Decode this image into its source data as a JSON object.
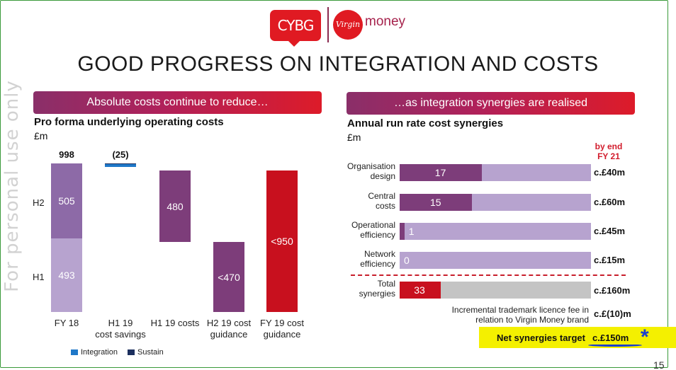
{
  "watermark": "For personal use only",
  "logos": {
    "cybg": "CYBG",
    "virgin": "Virgin",
    "money": "money"
  },
  "title": "GOOD PROGRESS ON INTEGRATION AND COSTS",
  "left_banner": "Absolute costs continue to reduce…",
  "right_banner": "…as integration synergies are realised",
  "page_number": "15",
  "colors": {
    "purple": "#7d3d7a",
    "purple_light": "#b7a3cf",
    "red": "#c8101e",
    "integration": "#1f78c8",
    "sustain": "#1c2f5e",
    "grey": "#c4c4c4"
  },
  "chart_data": [
    {
      "type": "bar",
      "subtype": "waterfall",
      "title": "Pro forma underlying operating costs",
      "unit": "£m",
      "ylabel": "",
      "categories": [
        {
          "label": "FY 18",
          "line1": "FY 18",
          "line2": ""
        },
        {
          "label": "H1 19 cost savings",
          "line1": "H1 19",
          "line2": "cost savings"
        },
        {
          "label": "H1 19 costs",
          "line1": "H1 19 costs",
          "line2": ""
        },
        {
          "label": "H2 19 cost guidance",
          "line1": "H2 19 cost",
          "line2": "guidance"
        },
        {
          "label": "FY 19 cost guidance",
          "line1": "FY 19 cost",
          "line2": "guidance"
        }
      ],
      "row_labels": {
        "h1": "H1",
        "h2": "H2"
      },
      "fy18": {
        "total": 998,
        "total_label": "998",
        "h1": 493,
        "h1_label": "493",
        "h2": 505,
        "h2_label": "505"
      },
      "cost_savings": {
        "total": -25,
        "total_label": "(25)",
        "integration": -22,
        "sustain": -3
      },
      "h1_19_costs": {
        "value": 480,
        "label": "480"
      },
      "h2_19_guidance": {
        "value": 470,
        "label": "<470"
      },
      "fy19_guidance": {
        "value": 950,
        "label": "<950"
      },
      "legend": [
        "Integration",
        "Sustain"
      ]
    },
    {
      "type": "bar",
      "subtype": "horizontal-stacked",
      "title": "Annual run rate cost synergies",
      "unit": "£m",
      "target_header": [
        "by end",
        "FY 21"
      ],
      "max": 160,
      "rows": [
        {
          "label_lines": [
            "Organisation",
            "design"
          ],
          "achieved": 17,
          "target": 40,
          "target_label": "c.£40m"
        },
        {
          "label_lines": [
            "Central",
            "costs"
          ],
          "achieved": 15,
          "target": 60,
          "target_label": "c.£60m"
        },
        {
          "label_lines": [
            "Operational",
            "efficiency"
          ],
          "achieved": 1,
          "target": 45,
          "target_label": "c.£45m"
        },
        {
          "label_lines": [
            "Network",
            "efficiency"
          ],
          "achieved": 0,
          "target": 15,
          "target_label": "c.£15m"
        }
      ],
      "total": {
        "label_lines": [
          "Total",
          "synergies"
        ],
        "achieved": 33,
        "target": 160,
        "target_label": "c.£160m"
      },
      "trademark_note_lines": [
        "Incremental trademark licence fee in",
        "relation to Virgin Money brand"
      ],
      "trademark_value": "c.£(10)m",
      "net_label": "Net synergies target",
      "net_value": "c.£150m",
      "annotation_mark": "*"
    }
  ]
}
